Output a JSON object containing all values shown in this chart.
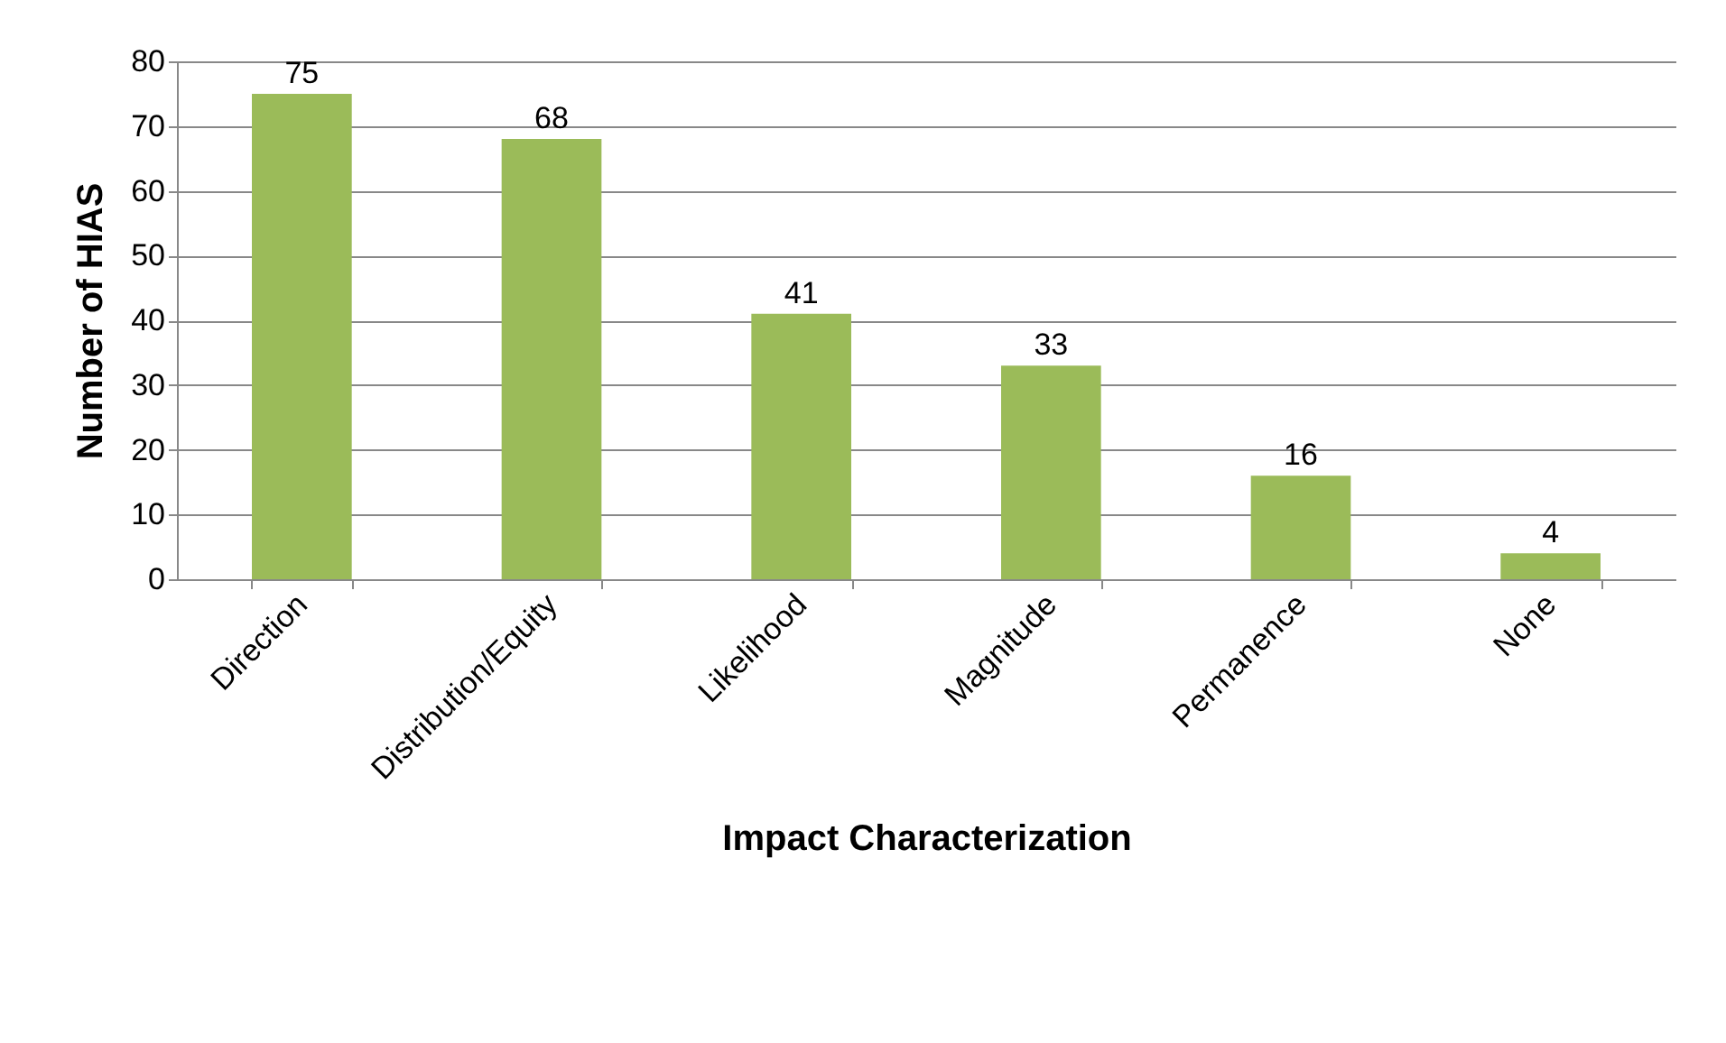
{
  "chart_data": {
    "type": "bar",
    "xlabel": "Impact Characterization",
    "ylabel": "Number of HIAS",
    "categories": [
      "Direction",
      "Distribution/Equity",
      "Likelihood",
      "Magnitude",
      "Permanence",
      "None"
    ],
    "values": [
      75,
      68,
      41,
      33,
      16,
      4
    ],
    "color": "#9bbb59",
    "ylim": [
      0,
      80
    ],
    "yticks": [
      0,
      10,
      20,
      30,
      40,
      50,
      60,
      70,
      80
    ],
    "grid": "y",
    "data_labels": true
  }
}
